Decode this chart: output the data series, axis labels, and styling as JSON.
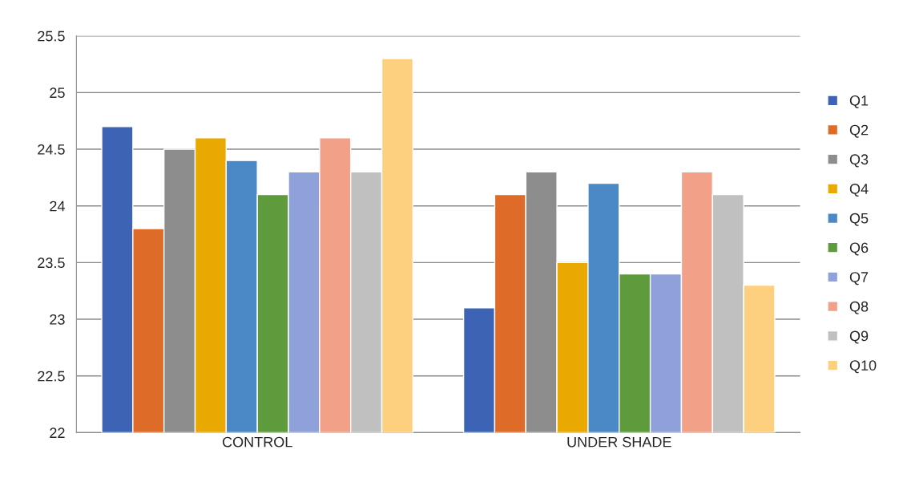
{
  "chart_data": {
    "type": "bar",
    "categories": [
      "CONTROL",
      "UNDER SHADE"
    ],
    "series": [
      {
        "name": "Q1",
        "color": "#3d64b4",
        "values": [
          24.7,
          23.1
        ]
      },
      {
        "name": "Q2",
        "color": "#de6b28",
        "values": [
          23.8,
          24.1
        ]
      },
      {
        "name": "Q3",
        "color": "#8d8d8d",
        "values": [
          24.5,
          24.3
        ]
      },
      {
        "name": "Q4",
        "color": "#eaa900",
        "values": [
          24.6,
          23.5
        ]
      },
      {
        "name": "Q5",
        "color": "#4a88c6",
        "values": [
          24.4,
          24.2
        ]
      },
      {
        "name": "Q6",
        "color": "#5e9b3c",
        "values": [
          24.1,
          23.4
        ]
      },
      {
        "name": "Q7",
        "color": "#8ea2d9",
        "values": [
          24.3,
          23.4
        ]
      },
      {
        "name": "Q8",
        "color": "#f2a088",
        "values": [
          24.6,
          24.3
        ]
      },
      {
        "name": "Q9",
        "color": "#c0c0c0",
        "values": [
          24.3,
          24.1
        ]
      },
      {
        "name": "Q10",
        "color": "#fcd07e",
        "values": [
          25.3,
          23.3
        ]
      }
    ],
    "ylim": [
      22,
      25.5
    ],
    "yticks": [
      22,
      22.5,
      23,
      23.5,
      24,
      24.5,
      25,
      25.5
    ],
    "grid": "y",
    "legend": "right"
  }
}
